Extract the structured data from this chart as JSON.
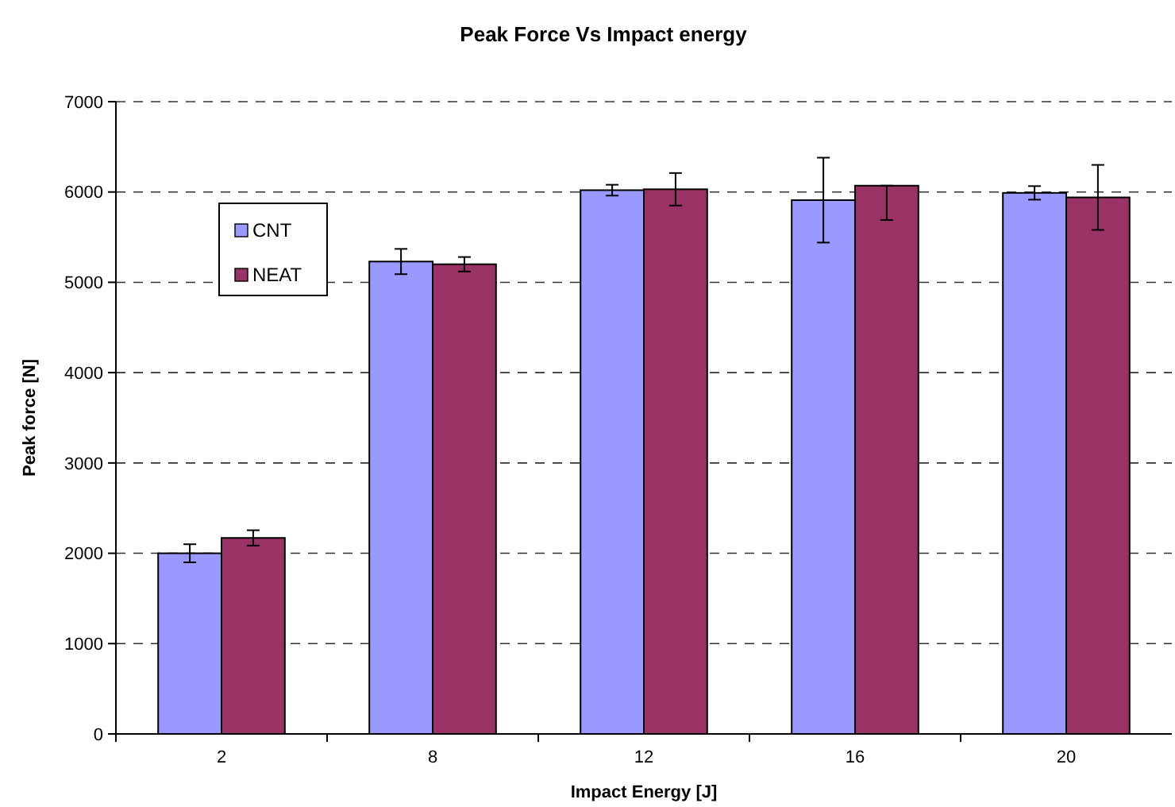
{
  "chart_data": {
    "type": "bar",
    "title": "Peak Force Vs Impact energy",
    "xlabel": "Impact Energy [J]",
    "ylabel": "Peak force [N]",
    "categories": [
      "2",
      "8",
      "12",
      "16",
      "20"
    ],
    "series": [
      {
        "name": "CNT",
        "color": "#9999ff",
        "values": [
          2000,
          5230,
          6020,
          5910,
          5990
        ],
        "errors": [
          100,
          140,
          60,
          470,
          75
        ]
      },
      {
        "name": "NEAT",
        "color": "#993366",
        "values": [
          2170,
          5200,
          6030,
          6070,
          5940
        ],
        "errors": [
          85,
          80,
          180,
          [
            5690,
            6070
          ],
          360
        ]
      }
    ],
    "ylim": [
      0,
      7000
    ],
    "yticks": [
      0,
      1000,
      2000,
      3000,
      4000,
      5000,
      6000,
      7000
    ],
    "grid": "y",
    "legend": "top left"
  }
}
